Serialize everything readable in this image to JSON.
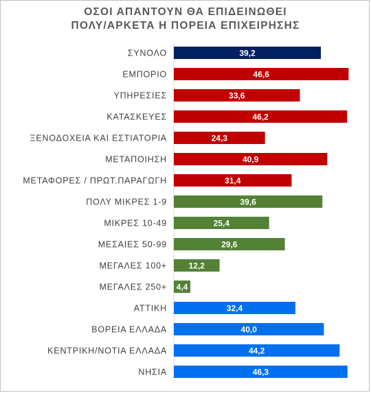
{
  "chart_data": {
    "type": "bar",
    "orientation": "horizontal",
    "title_line1": "ΟΣΟΙ ΑΠΑΝΤΟΥΝ ΘΑ ΕΠΙΔΕΙΝΩΘΕΙ",
    "title_line2": "ΠΟΛΥ/ΑΡΚΕΤΑ Η ΠΟΡΕΙΑ ΕΠΙΧΕΙΡΗΣΗΣ",
    "xlim": [
      0,
      50
    ],
    "grid": false,
    "legend": "none",
    "categories": [
      "ΣΥΝΟΛΟ",
      "ΕΜΠΟΡΙΟ",
      "ΥΠΗΡΕΣΙΕΣ",
      "ΚΑΤΑΣΚΕΥΕΣ",
      "ΞΕΝΟΔΟΧΕΙΑ ΚΑΙ ΕΣΤΙΑΤΟΡΙΑ",
      "ΜΕΤΑΠΟΙΗΣΗ",
      "ΜΕΤΑΦΟΡΕΣ / ΠΡΩΤ.ΠΑΡΑΓΩΓΗ",
      "ΠΟΛΥ ΜΙΚΡΕΣ 1-9",
      "ΜΙΚΡΕΣ 10-49",
      "ΜΕΣΑΙΕΣ 50-99",
      "ΜΕΓΑΛΕΣ 100+",
      "ΜΕΓΑΛΕΣ 250+",
      "ΑΤΤΙΚΗ",
      "ΒΟΡΕΙΑ ΕΛΛΑΔΑ",
      "ΚΕΝΤΡΙΚΗ/ΝΟΤΙΑ ΕΛΛΑΔΑ",
      "ΝΗΣΙΑ"
    ],
    "values": [
      39.2,
      46.6,
      33.6,
      46.2,
      24.3,
      40.9,
      31.4,
      39.6,
      25.4,
      29.6,
      12.2,
      4.4,
      32.4,
      40.0,
      44.2,
      46.3
    ],
    "value_labels": [
      "39,2",
      "46,6",
      "33,6",
      "46,2",
      "24,3",
      "40,9",
      "31,4",
      "39,6",
      "25,4",
      "29,6",
      "12,2",
      "4,4",
      "32,4",
      "40,0",
      "44,2",
      "46,3"
    ],
    "colors": [
      "#002060",
      "#c00000",
      "#c00000",
      "#c00000",
      "#c00000",
      "#c00000",
      "#c00000",
      "#538135",
      "#538135",
      "#538135",
      "#538135",
      "#538135",
      "#0070f0",
      "#0070f0",
      "#0070f0",
      "#0070f0"
    ]
  }
}
